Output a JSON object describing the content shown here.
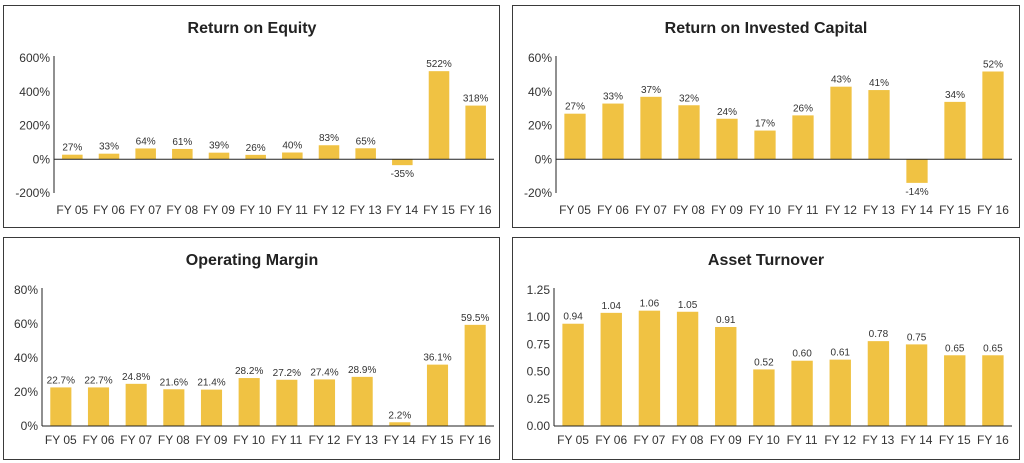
{
  "chart_data": [
    {
      "type": "bar",
      "title": "Return on Equity",
      "categories": [
        "FY 05",
        "FY 06",
        "FY 07",
        "FY 08",
        "FY 09",
        "FY 10",
        "FY 11",
        "FY 12",
        "FY 13",
        "FY 14",
        "FY 15",
        "FY 16"
      ],
      "values": [
        27,
        33,
        64,
        61,
        39,
        26,
        40,
        83,
        65,
        -35,
        522,
        318
      ],
      "value_labels": [
        "27%",
        "33%",
        "64%",
        "61%",
        "39%",
        "26%",
        "40%",
        "83%",
        "65%",
        "-35%",
        "522%",
        "318%"
      ],
      "yticks": [
        -200,
        0,
        200,
        400,
        600
      ],
      "ytick_labels": [
        "-200%",
        "0%",
        "200%",
        "400%",
        "600%"
      ],
      "ylim": [
        -200,
        600
      ],
      "grid": false,
      "bar_color": "#F0C243"
    },
    {
      "type": "bar",
      "title": "Return on Invested Capital",
      "categories": [
        "FY 05",
        "FY 06",
        "FY 07",
        "FY 08",
        "FY 09",
        "FY 10",
        "FY 11",
        "FY 12",
        "FY 13",
        "FY 14",
        "FY 15",
        "FY 16"
      ],
      "values": [
        27,
        33,
        37,
        32,
        24,
        17,
        26,
        43,
        41,
        -14,
        34,
        52
      ],
      "value_labels": [
        "27%",
        "33%",
        "37%",
        "32%",
        "24%",
        "17%",
        "26%",
        "43%",
        "41%",
        "-14%",
        "34%",
        "52%"
      ],
      "yticks": [
        -20,
        0,
        20,
        40,
        60
      ],
      "ytick_labels": [
        "-20%",
        "0%",
        "20%",
        "40%",
        "60%"
      ],
      "ylim": [
        -20,
        60
      ],
      "grid": false,
      "bar_color": "#F0C243"
    },
    {
      "type": "bar",
      "title": "Operating Margin",
      "categories": [
        "FY 05",
        "FY 06",
        "FY 07",
        "FY 08",
        "FY 09",
        "FY 10",
        "FY 11",
        "FY 12",
        "FY 13",
        "FY 14",
        "FY 15",
        "FY 16"
      ],
      "values": [
        22.7,
        22.7,
        24.8,
        21.6,
        21.4,
        28.2,
        27.2,
        27.4,
        28.9,
        2.2,
        36.1,
        59.5
      ],
      "value_labels": [
        "22.7%",
        "22.7%",
        "24.8%",
        "21.6%",
        "21.4%",
        "28.2%",
        "27.2%",
        "27.4%",
        "28.9%",
        "2.2%",
        "36.1%",
        "59.5%"
      ],
      "yticks": [
        0,
        20,
        40,
        60,
        80
      ],
      "ytick_labels": [
        "0%",
        "20%",
        "40%",
        "60%",
        "80%"
      ],
      "ylim": [
        0,
        80
      ],
      "grid": false,
      "bar_color": "#F0C243"
    },
    {
      "type": "bar",
      "title": "Asset Turnover",
      "categories": [
        "FY 05",
        "FY 06",
        "FY 07",
        "FY 08",
        "FY 09",
        "FY 10",
        "FY 11",
        "FY 12",
        "FY 13",
        "FY 14",
        "FY 15",
        "FY 16"
      ],
      "values": [
        0.94,
        1.04,
        1.06,
        1.05,
        0.91,
        0.52,
        0.6,
        0.61,
        0.78,
        0.75,
        0.65,
        0.65
      ],
      "value_labels": [
        "0.94",
        "1.04",
        "1.06",
        "1.05",
        "0.91",
        "0.52",
        "0.60",
        "0.61",
        "0.78",
        "0.75",
        "0.65",
        "0.65"
      ],
      "yticks": [
        0,
        0.25,
        0.5,
        0.75,
        1.0,
        1.25
      ],
      "ytick_labels": [
        "0.00",
        "0.25",
        "0.50",
        "0.75",
        "1.00",
        "1.25"
      ],
      "ylim": [
        0,
        1.25
      ],
      "grid": false,
      "bar_color": "#F0C243"
    }
  ]
}
